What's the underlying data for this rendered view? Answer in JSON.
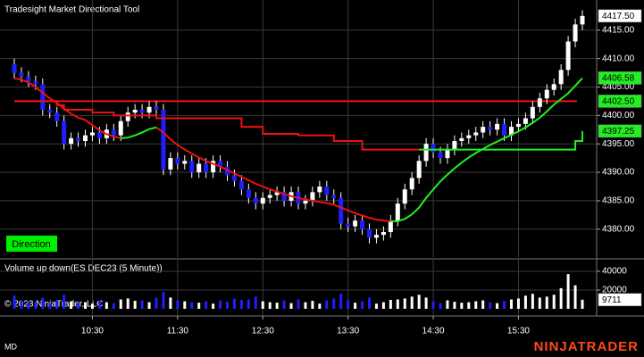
{
  "chart_data": {
    "type": "candlestick",
    "title": "Tradesight Market Directional Tool",
    "direction_label": "Direction",
    "copyright": "© 2023 NinjaTrader, LLC",
    "corner_label": "MD",
    "brand": "NINJATRADER",
    "categories": [
      null,
      null,
      null,
      null,
      null,
      null,
      null,
      null,
      null,
      null,
      null,
      "10:30",
      null,
      null,
      null,
      null,
      null,
      null,
      null,
      null,
      null,
      null,
      null,
      "11:30",
      null,
      null,
      null,
      null,
      null,
      null,
      null,
      null,
      null,
      null,
      null,
      "12:30",
      null,
      null,
      null,
      null,
      null,
      null,
      null,
      null,
      null,
      null,
      null,
      "13:30",
      null,
      null,
      null,
      null,
      null,
      null,
      null,
      null,
      null,
      null,
      null,
      "14:30",
      null,
      null,
      null,
      null,
      null,
      null,
      null,
      null,
      null,
      null,
      null,
      "15:30",
      null,
      null,
      null,
      null,
      null,
      null,
      null,
      null,
      null
    ],
    "candles": {
      "open": [
        4409.0,
        4407.5,
        4406.8,
        4406.0,
        4405.5,
        4401.0,
        4400.5,
        4399.0,
        4395.0,
        4396.0,
        4395.5,
        4396.5,
        4397.0,
        4396.0,
        4397.5,
        4396.5,
        4399.0,
        4400.5,
        4401.0,
        4400.5,
        4401.5,
        4401.0,
        4390.5,
        4392.5,
        4391.5,
        4392.0,
        4390.0,
        4391.5,
        4390.0,
        4392.0,
        4391.0,
        4389.5,
        4388.5,
        4387.0,
        4385.5,
        4384.5,
        4385.5,
        4386.0,
        4386.5,
        4385.0,
        4386.5,
        4384.5,
        4385.0,
        4386.5,
        4387.5,
        4386.0,
        4385.5,
        4381.0,
        4380.5,
        4381.5,
        4380.0,
        4378.5,
        4379.0,
        4379.5,
        4381.5,
        4384.5,
        4387.0,
        4389.0,
        4392.0,
        4395.0,
        4393.5,
        4392.5,
        4394.0,
        4395.5,
        4396.0,
        4396.5,
        4397.0,
        4398.0,
        4397.5,
        4398.5,
        4396.5,
        4398.0,
        4398.5,
        4399.5,
        4401.5,
        4403.0,
        4404.5,
        4405.5,
        4408.0,
        4413.0,
        4416.0
      ],
      "high": [
        4410.0,
        4408.5,
        4407.8,
        4407.0,
        4406.5,
        4402.0,
        4401.5,
        4400.0,
        4397.0,
        4397.0,
        4397.5,
        4398.0,
        4398.0,
        4398.5,
        4398.5,
        4400.0,
        4401.5,
        4402.0,
        4402.0,
        4402.5,
        4402.5,
        4402.0,
        4393.5,
        4393.5,
        4393.0,
        4393.0,
        4392.5,
        4392.5,
        4393.0,
        4393.0,
        4392.0,
        4390.5,
        4389.5,
        4388.0,
        4386.5,
        4386.5,
        4387.0,
        4387.5,
        4387.5,
        4387.5,
        4387.5,
        4386.0,
        4387.5,
        4388.5,
        4388.5,
        4387.0,
        4386.5,
        4382.0,
        4382.5,
        4382.5,
        4381.0,
        4380.0,
        4380.5,
        4382.5,
        4385.5,
        4388.0,
        4390.0,
        4393.0,
        4396.0,
        4396.0,
        4394.5,
        4395.0,
        4396.5,
        4397.0,
        4397.5,
        4398.0,
        4399.0,
        4399.0,
        4399.5,
        4399.5,
        4399.0,
        4399.5,
        4400.5,
        4402.5,
        4404.0,
        4405.5,
        4406.5,
        4409.0,
        4414.0,
        4417.0,
        4418.5
      ],
      "low": [
        4406.5,
        4405.8,
        4405.0,
        4404.5,
        4400.0,
        4399.5,
        4398.0,
        4394.0,
        4394.0,
        4394.5,
        4394.5,
        4395.5,
        4395.0,
        4395.0,
        4395.5,
        4395.5,
        4398.0,
        4399.5,
        4399.5,
        4399.5,
        4400.0,
        4389.5,
        4389.5,
        4390.5,
        4390.5,
        4389.0,
        4389.0,
        4389.0,
        4389.0,
        4390.0,
        4388.5,
        4387.5,
        4386.0,
        4384.5,
        4383.5,
        4383.5,
        4384.5,
        4385.0,
        4384.0,
        4384.0,
        4383.5,
        4383.5,
        4384.0,
        4385.5,
        4385.0,
        4384.5,
        4380.0,
        4379.5,
        4379.5,
        4379.0,
        4377.5,
        4377.5,
        4378.0,
        4378.5,
        4380.5,
        4383.5,
        4386.0,
        4388.0,
        4391.0,
        4392.5,
        4391.5,
        4391.5,
        4393.0,
        4394.5,
        4395.0,
        4395.5,
        4396.0,
        4396.5,
        4396.5,
        4395.5,
        4395.5,
        4397.0,
        4397.5,
        4398.5,
        4400.5,
        4402.0,
        4403.5,
        4404.5,
        4407.0,
        4412.0,
        4415.0
      ],
      "close": [
        4407.5,
        4406.8,
        4406.0,
        4405.5,
        4401.0,
        4400.5,
        4399.0,
        4395.0,
        4396.0,
        4395.5,
        4396.5,
        4397.0,
        4396.0,
        4397.5,
        4396.5,
        4399.0,
        4400.5,
        4401.0,
        4400.5,
        4401.5,
        4401.0,
        4390.5,
        4392.5,
        4391.5,
        4392.0,
        4390.0,
        4391.5,
        4390.0,
        4392.0,
        4391.0,
        4389.5,
        4388.5,
        4387.0,
        4385.5,
        4384.5,
        4385.5,
        4386.0,
        4386.5,
        4385.0,
        4386.5,
        4384.5,
        4385.0,
        4386.5,
        4387.5,
        4386.0,
        4385.5,
        4381.0,
        4380.5,
        4381.5,
        4380.0,
        4378.5,
        4379.0,
        4379.5,
        4381.5,
        4384.5,
        4387.0,
        4389.0,
        4392.0,
        4395.0,
        4393.5,
        4392.5,
        4394.0,
        4395.5,
        4396.0,
        4396.5,
        4397.0,
        4398.0,
        4397.5,
        4398.5,
        4396.5,
        4398.0,
        4398.5,
        4399.5,
        4401.5,
        4403.0,
        4404.5,
        4405.5,
        4408.0,
        4413.0,
        4416.0,
        4417.5
      ],
      "up_color": "#ffffff",
      "down_color": "#1e1eff",
      "wick_color": "#ffffff"
    },
    "last_label": "4417.50",
    "ylim": [
      4375.1,
      4420.3
    ],
    "yticks": [
      {
        "value": 4380,
        "label": "4380.00"
      },
      {
        "value": 4385,
        "label": "4385.00"
      },
      {
        "value": 4390,
        "label": "4390.00"
      },
      {
        "value": 4395,
        "label": "4395.00"
      },
      {
        "value": 4400,
        "label": "4400.00"
      },
      {
        "value": 4405,
        "label": "4405.00"
      },
      {
        "value": 4410,
        "label": "4410.00"
      },
      {
        "value": 4415,
        "label": "4415.00"
      }
    ],
    "grid": true,
    "series": [
      {
        "style": "trend",
        "up_color": "#22ee22",
        "down_color": "#ee1111",
        "end_label": "4406.58",
        "values": [
          4406.5,
          4406.3,
          4405.8,
          4405.0,
          4404.0,
          4403.0,
          4402.2,
          4401.2,
          4400.3,
          4399.6,
          4399.2,
          4398.3,
          4397.4,
          4396.7,
          4396.3,
          4396.0,
          4396.1,
          4396.5,
          4397.0,
          4397.6,
          4397.9,
          4397.0,
          4395.8,
          4394.8,
          4394.0,
          4393.3,
          4392.6,
          4392.0,
          4391.5,
          4391.0,
          4390.4,
          4389.8,
          4389.2,
          4388.6,
          4388.0,
          4387.5,
          4387.0,
          4386.6,
          4386.2,
          4385.8,
          4385.5,
          4385.2,
          4385.0,
          4384.8,
          4384.6,
          4384.3,
          4383.8,
          4383.3,
          4382.8,
          4382.4,
          4382.0,
          4381.7,
          4381.5,
          4381.4,
          4381.4,
          4381.8,
          4382.6,
          4383.8,
          4385.5,
          4387.0,
          4388.4,
          4389.6,
          4390.7,
          4391.7,
          4392.6,
          4393.4,
          4394.1,
          4394.8,
          4395.4,
          4396.0,
          4396.6,
          4397.2,
          4397.9,
          4398.7,
          4399.6,
          4400.7,
          4401.9,
          4402.9,
          4403.9,
          4405.2,
          4406.58
        ]
      },
      {
        "style": "step",
        "color": "#ee1111",
        "values": [
          4402.5,
          4402.5,
          4402.5,
          4402.5,
          4402.5,
          4402.5,
          4401.8,
          4401.0,
          4401.0,
          4401.0,
          4401.0,
          4400.5,
          4400.5,
          4400.5,
          4400.0,
          4400.0,
          4400.0,
          4400.0,
          4400.0,
          4400.0,
          4399.5,
          4399.5,
          4399.5,
          4399.5,
          4399.5,
          4399.5,
          4399.5,
          4399.5,
          4399.5,
          4399.5,
          4399.5,
          4399.5,
          4398.0,
          4398.0,
          4398.0,
          4396.75,
          4396.75,
          4396.75,
          4396.75,
          4396.75,
          4396.5,
          4396.5,
          4396.5,
          4396.5,
          4396.5,
          4395.5,
          4395.5,
          4395.5,
          4395.5,
          4394.0,
          4394.0,
          4394.0,
          4394.0,
          4394.0,
          4394.0,
          4394.0,
          4394.0,
          4394.0,
          null,
          null,
          null,
          null,
          null,
          null,
          null,
          null,
          null,
          null,
          null,
          null,
          null,
          null,
          null,
          null,
          null,
          null,
          null,
          null,
          null,
          null,
          null
        ]
      },
      {
        "style": "step",
        "color": "#22ee22",
        "end_label": "4397.25",
        "values": [
          null,
          null,
          null,
          null,
          null,
          null,
          null,
          null,
          null,
          null,
          null,
          null,
          null,
          null,
          null,
          null,
          null,
          null,
          null,
          null,
          null,
          null,
          null,
          null,
          null,
          null,
          null,
          null,
          null,
          null,
          null,
          null,
          null,
          null,
          null,
          null,
          null,
          null,
          null,
          null,
          null,
          null,
          null,
          null,
          null,
          null,
          null,
          null,
          null,
          null,
          null,
          null,
          null,
          null,
          null,
          null,
          null,
          4394.0,
          4394.0,
          4394.0,
          4394.0,
          4394.0,
          4394.0,
          4394.0,
          4394.0,
          4394.0,
          4394.0,
          4394.0,
          4394.0,
          4394.0,
          4394.0,
          4394.0,
          4394.0,
          4394.0,
          4394.0,
          4394.0,
          4394.0,
          4394.0,
          4394.0,
          4395.5,
          4397.25
        ]
      }
    ],
    "levels": [
      {
        "value": 4402.5,
        "label": "4402.50",
        "color": "#ee1111",
        "box_color": "#22ee22"
      }
    ],
    "volume": {
      "type": "bar",
      "title": "Volume up down(ES DEC23 (5 Minute))",
      "values": [
        14000,
        9000,
        8000,
        7500,
        12000,
        6000,
        9500,
        15000,
        8000,
        6500,
        7000,
        5500,
        9000,
        7000,
        6000,
        10000,
        11000,
        8500,
        9000,
        7000,
        12000,
        18000,
        12000,
        9000,
        8000,
        7000,
        6500,
        8000,
        5500,
        9000,
        7500,
        11000,
        9500,
        10000,
        13000,
        8000,
        7000,
        6500,
        9000,
        6000,
        10000,
        7000,
        8500,
        5500,
        9000,
        11000,
        16000,
        9000,
        6500,
        8000,
        12000,
        5500,
        7000,
        9500,
        10000,
        11000,
        13000,
        15000,
        12000,
        8000,
        6000,
        9000,
        7500,
        6500,
        7000,
        8000,
        9000,
        7000,
        6000,
        8500,
        10000,
        11000,
        14000,
        16000,
        12000,
        13000,
        15000,
        22000,
        37000,
        25000,
        9711
      ],
      "end_label": "9711",
      "ylim": [
        0,
        51400
      ],
      "yticks": [
        20000,
        40000
      ]
    }
  }
}
